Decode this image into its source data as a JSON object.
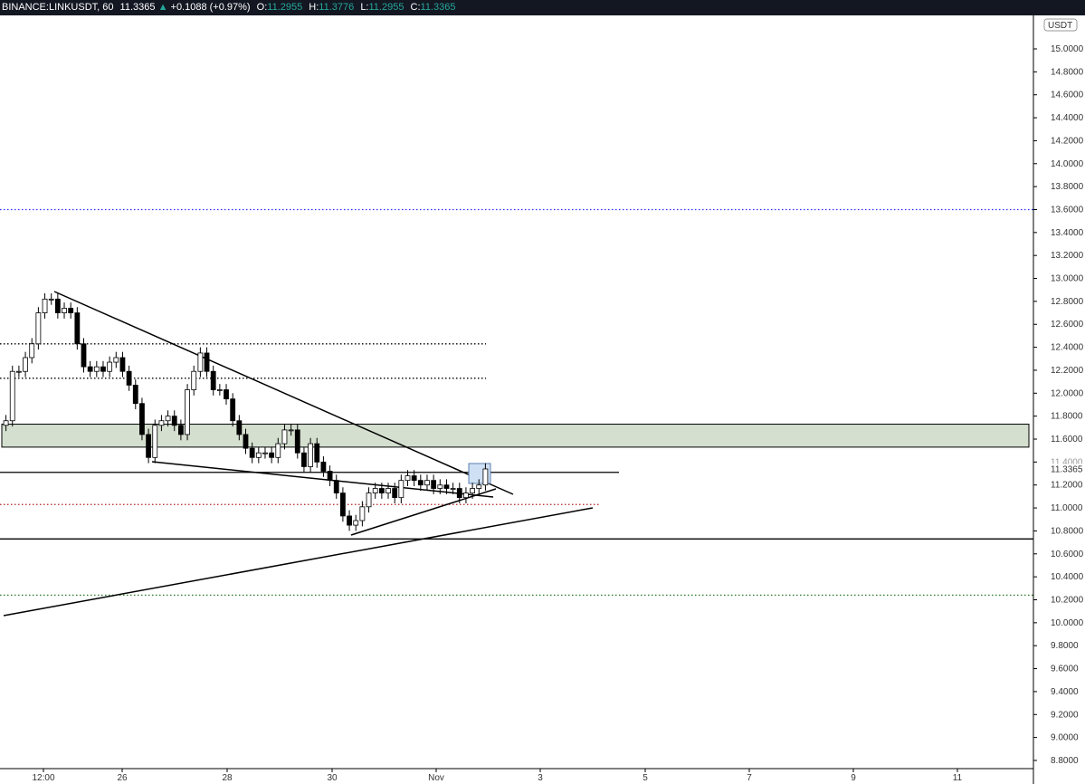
{
  "header": {
    "symbol": "BINANCE:LINKUSDT, 60",
    "last": "11.3365",
    "change": "+0.1088 (+0.97%)",
    "o_label": "O:",
    "o": "11.2955",
    "h_label": "H:",
    "h": "11.3776",
    "l_label": "L:",
    "l": "11.2955",
    "c_label": "C:",
    "c": "11.3365"
  },
  "colors": {
    "up": "#26a69a",
    "candle_body": "#ffffff",
    "candle_line": "#000000",
    "zone": "#d4dfcf",
    "blue_level": "#2a2aff",
    "red_level": "#b22222",
    "green_level": "#2e7d32"
  },
  "chart_data": {
    "type": "candlestick",
    "currency_label": "USDT",
    "current_price_label": "11.3365",
    "y_ticks": [
      "15.0000",
      "14.8000",
      "14.6000",
      "14.4000",
      "14.2000",
      "14.0000",
      "13.8000",
      "13.6000",
      "13.4000",
      "13.2000",
      "13.0000",
      "12.8000",
      "12.6000",
      "12.4000",
      "12.2000",
      "12.0000",
      "11.8000",
      "11.6000",
      "11.4000",
      "11.2000",
      "11.0000",
      "10.8000",
      "10.6000",
      "10.4000",
      "10.2000",
      "10.0000",
      "9.8000",
      "9.6000",
      "9.4000",
      "9.2000",
      "9.0000",
      "8.8000"
    ],
    "ylim": [
      8.8,
      15.0
    ],
    "x_ticks": [
      "12:00",
      "26",
      "28",
      "30",
      "Nov",
      "3",
      "5",
      "7",
      "9",
      "11"
    ],
    "closes": [
      11.76,
      12.19,
      12.19,
      12.31,
      12.43,
      12.7,
      12.82,
      12.82,
      12.7,
      12.74,
      12.7,
      12.43,
      12.23,
      12.19,
      12.23,
      12.19,
      12.27,
      12.31,
      12.19,
      12.07,
      11.91,
      11.64,
      11.44,
      11.72,
      11.76,
      11.8,
      11.72,
      11.64,
      12.03,
      12.19,
      12.35,
      12.19,
      12.03,
      12.03,
      11.95,
      11.76,
      11.64,
      11.52,
      11.44,
      11.48,
      11.48,
      11.44,
      11.56,
      11.68,
      11.68,
      11.48,
      11.36,
      11.56,
      11.4,
      11.32,
      11.24,
      11.13,
      10.93,
      10.85,
      10.89,
      11.01,
      11.13,
      11.17,
      11.13,
      11.17,
      11.09,
      11.24,
      11.28,
      11.24,
      11.2,
      11.24,
      11.17,
      11.2,
      11.17,
      11.17,
      11.09,
      11.13,
      11.17,
      11.2,
      11.34
    ],
    "levels": {
      "blue_dotted": 13.6,
      "dotted_upper": 12.43,
      "dotted_lower": 12.13,
      "zone_top": 11.73,
      "zone_bottom": 11.53,
      "solid_upper": 11.31,
      "red_dotted": 11.03,
      "solid_lower": 10.73,
      "green_dotted": 10.24
    }
  }
}
